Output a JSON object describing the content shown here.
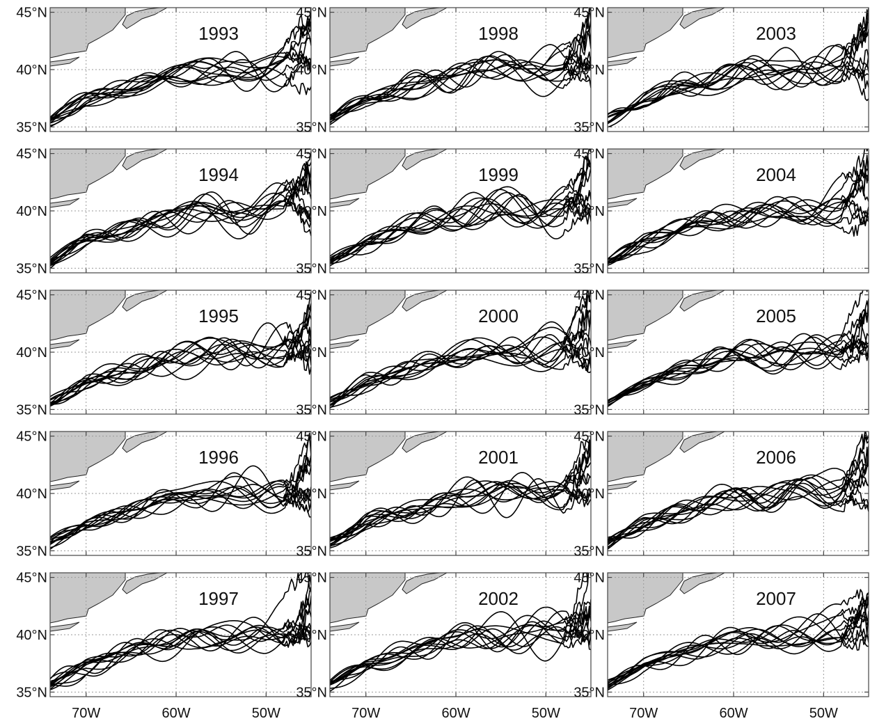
{
  "figure": {
    "description_free": true,
    "grid": true
  },
  "chart_data": {
    "type": "line",
    "panel_layout": {
      "columns": 3,
      "rows": 5,
      "order": "column-major"
    },
    "x_ticks": [
      -70,
      -60,
      -50
    ],
    "x_tick_labels": [
      "70W",
      "60W",
      "50W"
    ],
    "y_ticks": [
      35,
      40,
      45
    ],
    "y_tick_labels": [
      "35°N",
      "40°N",
      "45°N"
    ],
    "xlim": [
      -74,
      -45
    ],
    "ylim": [
      34.6,
      45.4
    ],
    "grid": true,
    "land_color": "#c8c8c8",
    "line_color": "#000000",
    "lines_per_panel": 12,
    "panels": [
      {
        "label": "1993"
      },
      {
        "label": "1994"
      },
      {
        "label": "1995"
      },
      {
        "label": "1996"
      },
      {
        "label": "1997"
      },
      {
        "label": "1998"
      },
      {
        "label": "1999"
      },
      {
        "label": "2000"
      },
      {
        "label": "2001"
      },
      {
        "label": "2002"
      },
      {
        "label": "2003"
      },
      {
        "label": "2004"
      },
      {
        "label": "2005"
      },
      {
        "label": "2006"
      },
      {
        "label": "2007"
      }
    ],
    "mean_path": {
      "lon": [
        -74,
        -70,
        -66,
        -62,
        -58,
        -54,
        -50,
        -47,
        -45
      ],
      "lat": [
        35.6,
        37.4,
        38.3,
        39.2,
        39.8,
        40.0,
        40.0,
        40.3,
        41.0
      ]
    }
  }
}
